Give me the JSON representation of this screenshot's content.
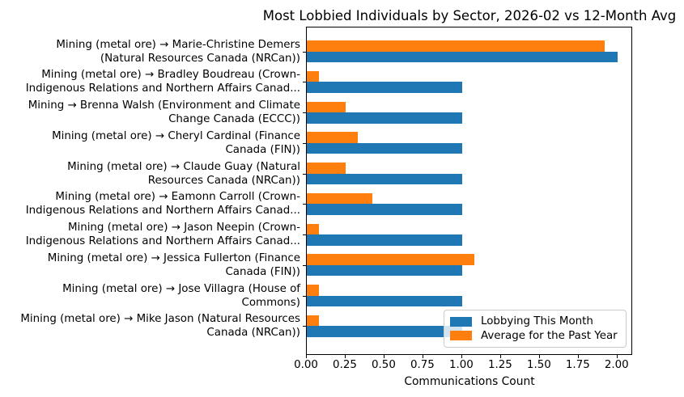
{
  "chart_data": {
    "type": "bar",
    "orientation": "horizontal",
    "title": "Most Lobbied Individuals by Sector, 2026-02 vs 12-Month Avg",
    "xlabel": "Communications Count",
    "ylabel": "",
    "xlim": [
      0,
      2.1
    ],
    "xticks": [
      "0.00",
      "0.25",
      "0.50",
      "0.75",
      "1.00",
      "1.25",
      "1.50",
      "1.75",
      "2.00"
    ],
    "grid": false,
    "legend_position": "lower right",
    "categories": [
      "Mining (metal ore) → Marie-Christine Demers (Natural Resources Canada (NRCan))",
      "Mining (metal ore) → Bradley Boudreau (Crown-Indigenous Relations and Northern Affairs Canad...",
      "Mining → Brenna Walsh (Environment and Climate Change Canada (ECCC))",
      "Mining (metal ore) → Cheryl Cardinal (Finance Canada (FIN))",
      "Mining (metal ore) → Claude Guay (Natural Resources Canada (NRCan))",
      "Mining (metal ore) → Eamonn Carroll (Crown-Indigenous Relations and Northern Affairs Canad...",
      "Mining (metal ore) → Jason Neepin (Crown-Indigenous Relations and Northern Affairs Canad...",
      "Mining (metal ore) → Jessica Fullerton (Finance Canada (FIN))",
      "Mining (metal ore) → Jose Villagra (House of Commons)",
      "Mining (metal ore) → Mike Jason (Natural Resources Canada (NRCan))"
    ],
    "category_display_lines": [
      [
        "Mining (metal ore) → Marie-Christine Demers",
        "(Natural Resources Canada (NRCan))"
      ],
      [
        "Mining (metal ore) → Bradley Boudreau (Crown-",
        "Indigenous Relations and Northern Affairs Canad..."
      ],
      [
        "Mining → Brenna Walsh (Environment and Climate",
        "Change Canada (ECCC))"
      ],
      [
        "Mining (metal ore) → Cheryl Cardinal (Finance",
        "Canada (FIN))"
      ],
      [
        "Mining (metal ore) → Claude Guay (Natural",
        "Resources Canada (NRCan))"
      ],
      [
        "Mining (metal ore) → Eamonn Carroll (Crown-",
        "Indigenous Relations and Northern Affairs Canad..."
      ],
      [
        "Mining (metal ore) → Jason Neepin (Crown-",
        "Indigenous Relations and Northern Affairs Canad..."
      ],
      [
        "Mining (metal ore) → Jessica Fullerton (Finance",
        "Canada (FIN))"
      ],
      [
        "Mining (metal ore) → Jose Villagra (House of",
        "Commons)"
      ],
      [
        "Mining (metal ore) → Mike Jason (Natural Resources",
        "Canada (NRCan))"
      ]
    ],
    "series": [
      {
        "name": "Lobbying This Month",
        "color": "#1f77b4",
        "values": [
          2.0,
          1.0,
          1.0,
          1.0,
          1.0,
          1.0,
          1.0,
          1.0,
          1.0,
          1.0
        ]
      },
      {
        "name": "Average for the Past Year",
        "color": "#ff7f0e",
        "values": [
          1.92,
          0.08,
          0.25,
          0.33,
          0.25,
          0.42,
          0.08,
          1.08,
          0.08,
          0.08
        ]
      }
    ]
  }
}
